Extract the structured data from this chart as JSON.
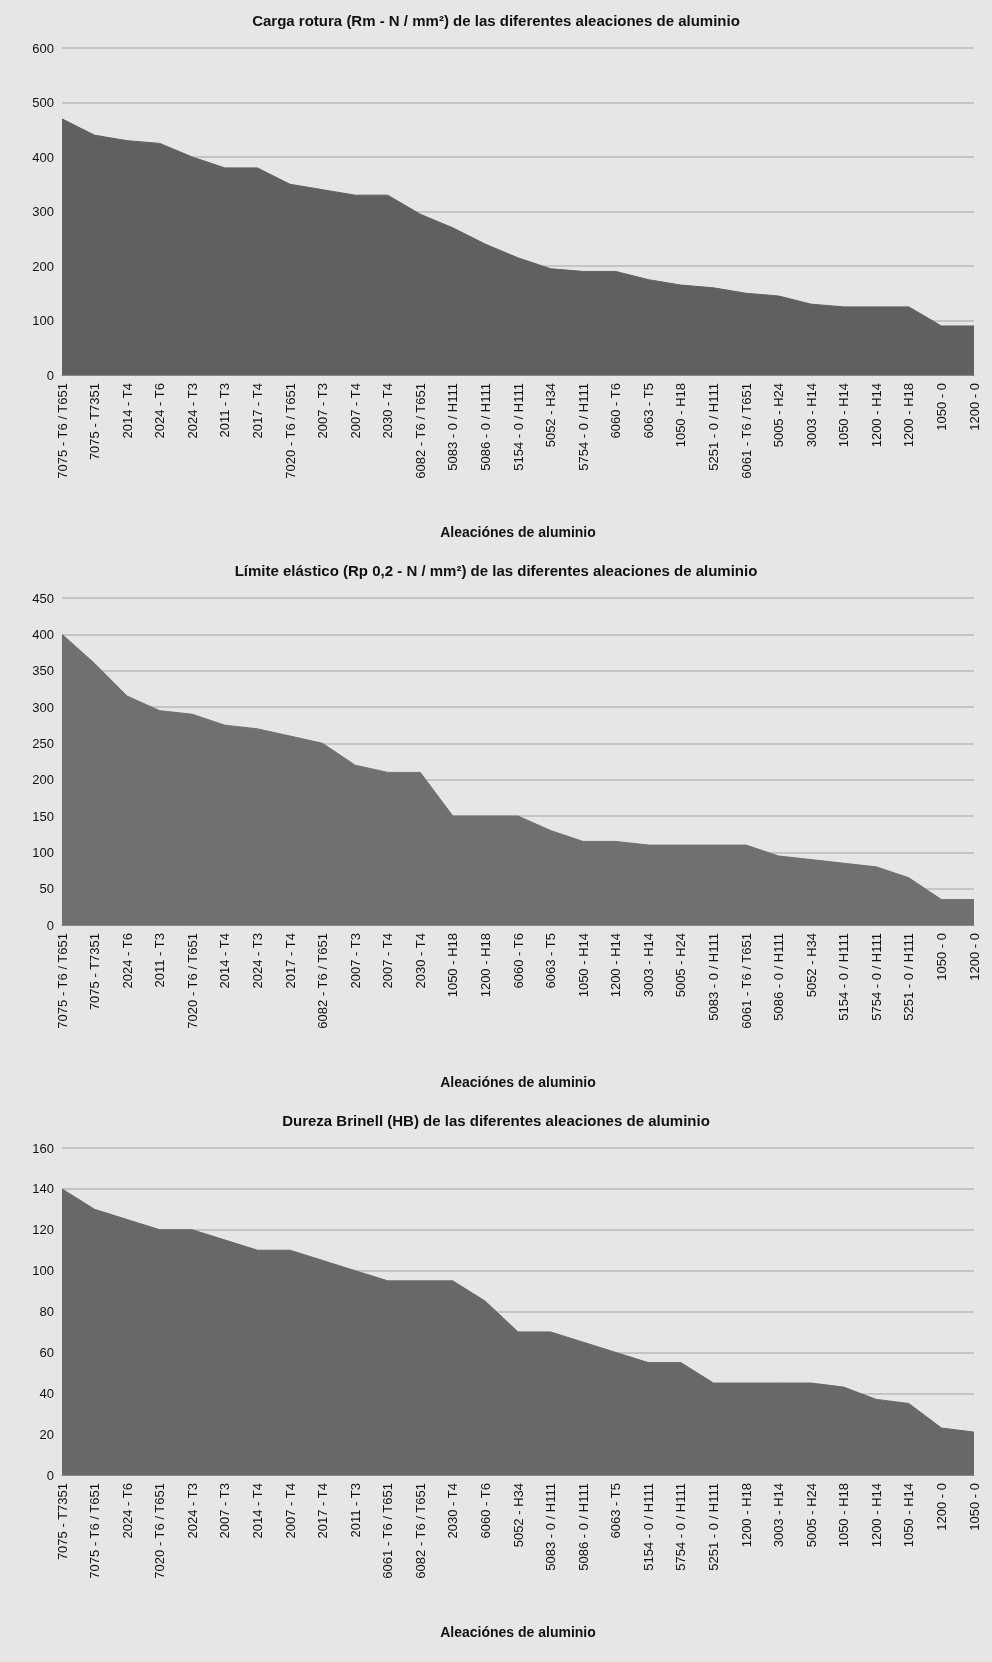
{
  "chart_data": [
    {
      "type": "area",
      "title": "Carga rotura (Rm - N / mm²) de las diferentes aleaciones de aluminio",
      "xlabel": "Aleaciónes de aluminio",
      "categories": [
        "7075 - T6 / T651",
        "7075 - T7351",
        "2014 - T4",
        "2024 - T6",
        "2024 - T3",
        "2011 - T3",
        "2017 - T4",
        "7020 - T6 / T651",
        "2007 - T3",
        "2007 - T4",
        "2030 - T4",
        "6082 - T6 / T651",
        "5083 - 0 / H111",
        "5086 - 0 / H111",
        "5154 - 0 / H111",
        "5052 - H34",
        "5754 - 0 / H111",
        "6060 - T6",
        "6063 - T5",
        "1050 - H18",
        "5251 - 0 / H111",
        "6061 - T6 / T651",
        "5005 - H24",
        "3003 - H14",
        "1050 - H14",
        "1200 - H14",
        "1200 - H18",
        "1050 - 0",
        "1200 - 0"
      ],
      "values": [
        470,
        440,
        430,
        425,
        400,
        380,
        380,
        350,
        340,
        330,
        330,
        295,
        270,
        240,
        215,
        195,
        190,
        190,
        175,
        165,
        160,
        150,
        145,
        130,
        125,
        125,
        125,
        90,
        90
      ],
      "color": "#606060",
      "ylim": [
        0,
        600
      ],
      "yticks": [
        0,
        100,
        200,
        300,
        400,
        500,
        600
      ],
      "grid": "y"
    },
    {
      "type": "area",
      "title": "Límite elástico (Rp 0,2 - N / mm²) de las diferentes aleaciones de aluminio",
      "xlabel": "Aleaciónes de aluminio",
      "categories": [
        "7075 - T6 / T651",
        "7075 - T7351",
        "2024 - T6",
        "2011 - T3",
        "7020 - T6 / T651",
        "2014 - T4",
        "2024 - T3",
        "2017 - T4",
        "6082 - T6 / T651",
        "2007 - T3",
        "2007 - T4",
        "2030 - T4",
        "1050 - H18",
        "1200 - H18",
        "6060 - T6",
        "6063 - T5",
        "1050 - H14",
        "1200 - H14",
        "3003 - H14",
        "5005 - H24",
        "5083 - 0 / H111",
        "6061 - T6 / T651",
        "5086 - 0 / H111",
        "5052 - H34",
        "5154 - 0 / H111",
        "5754 - 0 / H111",
        "5251 - 0 / H111",
        "1050 - 0",
        "1200 - 0"
      ],
      "values": [
        400,
        360,
        315,
        295,
        290,
        275,
        270,
        260,
        250,
        220,
        210,
        210,
        150,
        150,
        150,
        130,
        115,
        115,
        110,
        110,
        110,
        110,
        95,
        90,
        85,
        80,
        65,
        35,
        35
      ],
      "color": "#707070",
      "ylim": [
        0,
        450
      ],
      "yticks": [
        0,
        50,
        100,
        150,
        200,
        250,
        300,
        350,
        400,
        450
      ],
      "grid": "y"
    },
    {
      "type": "area",
      "title": "Dureza Brinell (HB) de las diferentes aleaciones de aluminio",
      "xlabel": "Aleaciónes de aluminio",
      "categories": [
        "7075 - T7351",
        "7075 - T6 / T651",
        "2024 - T6",
        "7020 - T6 / T651",
        "2024 - T3",
        "2007 - T3",
        "2014 - T4",
        "2007 - T4",
        "2017 - T4",
        "2011 - T3",
        "6061 - T6 / T651",
        "6082 - T6 / T651",
        "2030 - T4",
        "6060 - T6",
        "5052 - H34",
        "5083 - 0 / H111",
        "5086 - 0 / H111",
        "6063 - T5",
        "5154 - 0 / H111",
        "5754 - 0 / H111",
        "5251 - 0 / H111",
        "1200 - H18",
        "3003 - H14",
        "5005 - H24",
        "1050 - H18",
        "1200 - H14",
        "1050 - H14",
        "1200 - 0",
        "1050 - 0"
      ],
      "values": [
        140,
        130,
        125,
        120,
        120,
        115,
        110,
        110,
        105,
        100,
        95,
        95,
        95,
        85,
        70,
        70,
        65,
        60,
        55,
        55,
        45,
        45,
        45,
        45,
        43,
        37,
        35,
        23,
        21
      ],
      "color": "#686868",
      "ylim": [
        0,
        160
      ],
      "yticks": [
        0,
        20,
        40,
        60,
        80,
        100,
        120,
        140,
        160
      ],
      "grid": "y"
    }
  ]
}
